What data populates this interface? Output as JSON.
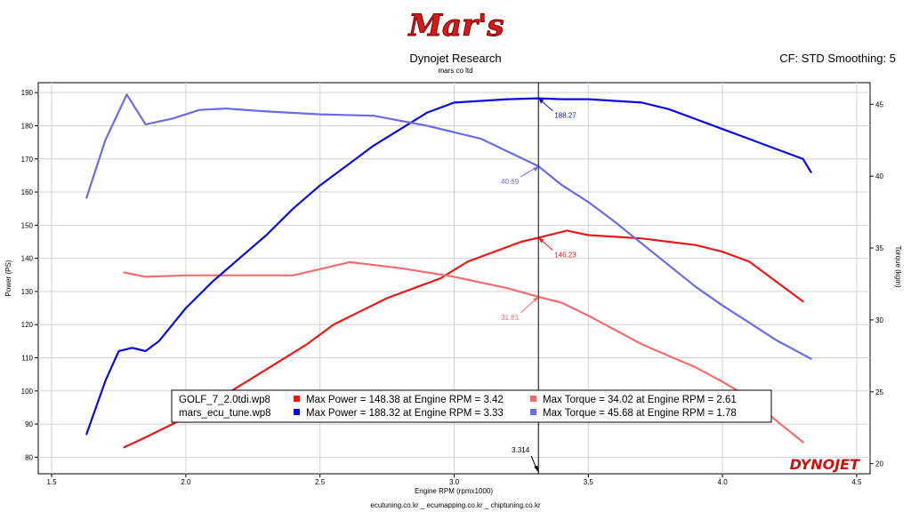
{
  "header": {
    "logo_text": "Mar's",
    "title": "Dynojet Research",
    "subtitle": "mars co ltd",
    "cf_info": "CF: STD Smoothing: 5"
  },
  "footer": {
    "text": "ecutuning.co.kr _ ecumapping.co.kr _ chiptuning.co.kr"
  },
  "brand": {
    "text": "DYNOJET"
  },
  "colors": {
    "golf_power": "#e81919",
    "golf_torque": "#f26e6e",
    "mars_power": "#0b0bd9",
    "mars_torque": "#6b6be8"
  },
  "chart_data": {
    "type": "line",
    "xlabel": "Engine RPM (rpmx1000)",
    "ylabel_left": "Power (PS)",
    "ylabel_right": "Torque (kgm)",
    "xlim": [
      1.45,
      4.55
    ],
    "ylim_left": [
      75,
      193
    ],
    "ylim_right": [
      19.3,
      46.5
    ],
    "x_ticks": [
      "1.5",
      "2.0",
      "2.5",
      "3.0",
      "3.5",
      "4.0",
      "4.5"
    ],
    "y_left_ticks": [
      "80",
      "90",
      "100",
      "110",
      "120",
      "130",
      "140",
      "150",
      "160",
      "170",
      "180",
      "190"
    ],
    "y_right_ticks": [
      "20",
      "25",
      "30",
      "35",
      "40",
      "45"
    ],
    "grid": true,
    "cursor": {
      "x": 3.314,
      "label": "3.314"
    },
    "series": [
      {
        "name": "GOLF_7_2.0tdi.wp8",
        "quantity": "Power",
        "axis": "left",
        "color": "#e81919",
        "x": [
          1.77,
          1.85,
          1.95,
          2.05,
          2.15,
          2.25,
          2.35,
          2.45,
          2.55,
          2.65,
          2.75,
          2.85,
          2.95,
          3.05,
          3.15,
          3.25,
          3.314,
          3.42,
          3.5,
          3.6,
          3.7,
          3.8,
          3.9,
          4.0,
          4.1,
          4.2,
          4.3
        ],
        "y": [
          83,
          86,
          90,
          94,
          99,
          104,
          109,
          114,
          120,
          124,
          128,
          131,
          134,
          139,
          142,
          145,
          146.23,
          148.38,
          147,
          146.5,
          146,
          145,
          144,
          142,
          139,
          133,
          127
        ]
      },
      {
        "name": "GOLF_7_2.0tdi.wp8",
        "quantity": "Torque",
        "axis": "right",
        "color": "#f26e6e",
        "x": [
          1.77,
          1.85,
          2.0,
          2.2,
          2.4,
          2.61,
          2.8,
          3.0,
          3.2,
          3.314,
          3.4,
          3.5,
          3.6,
          3.7,
          3.8,
          3.9,
          4.0,
          4.1,
          4.2,
          4.3
        ],
        "y": [
          33.3,
          33.0,
          33.1,
          33.1,
          33.1,
          34.02,
          33.6,
          33.0,
          32.2,
          31.61,
          31.2,
          30.3,
          29.3,
          28.3,
          27.5,
          26.7,
          25.7,
          24.6,
          23.0,
          21.5
        ]
      },
      {
        "name": "mars_ecu_tune.wp8",
        "quantity": "Power",
        "axis": "left",
        "color": "#0b0bd9",
        "x": [
          1.63,
          1.7,
          1.75,
          1.8,
          1.85,
          1.9,
          2.0,
          2.1,
          2.2,
          2.3,
          2.4,
          2.5,
          2.6,
          2.7,
          2.8,
          2.9,
          3.0,
          3.1,
          3.2,
          3.314,
          3.4,
          3.5,
          3.6,
          3.7,
          3.8,
          3.9,
          4.0,
          4.1,
          4.2,
          4.3,
          4.33
        ],
        "y": [
          87,
          103,
          112,
          113,
          112,
          115,
          125,
          133,
          140,
          147,
          155,
          162,
          168,
          174,
          179,
          184,
          187,
          187.5,
          188,
          188.27,
          188,
          188,
          187.5,
          187,
          185,
          182,
          179,
          176,
          173,
          170,
          166
        ]
      },
      {
        "name": "mars_ecu_tune.wp8",
        "quantity": "Torque",
        "axis": "right",
        "color": "#6b6be8",
        "x": [
          1.63,
          1.7,
          1.78,
          1.85,
          1.95,
          2.05,
          2.15,
          2.3,
          2.5,
          2.7,
          2.9,
          3.1,
          3.314,
          3.4,
          3.5,
          3.6,
          3.7,
          3.8,
          3.9,
          4.0,
          4.1,
          4.2,
          4.33
        ],
        "y": [
          38.5,
          42.5,
          45.68,
          43.6,
          44.0,
          44.6,
          44.7,
          44.5,
          44.3,
          44.2,
          43.5,
          42.6,
          40.69,
          39.4,
          38.2,
          36.8,
          35.3,
          33.8,
          32.3,
          31.0,
          29.8,
          28.6,
          27.3
        ]
      }
    ],
    "annotations": [
      {
        "text": "188.27",
        "color": "#0b0bd9"
      },
      {
        "text": "40.69",
        "color": "#6b6be8"
      },
      {
        "text": "146.23",
        "color": "#e81919"
      },
      {
        "text": "31.61",
        "color": "#f26e6e"
      }
    ],
    "legend": {
      "placement": "bottom-center",
      "rows": [
        {
          "file": "GOLF_7_2.0tdi.wp8",
          "power_text": "Max Power = 148.38 at Engine RPM = 3.42",
          "torque_text": "Max Torque = 34.02 at Engine RPM = 2.61",
          "power_color": "#e81919",
          "torque_color": "#f26e6e"
        },
        {
          "file": "mars_ecu_tune.wp8",
          "power_text": "Max Power = 188.32 at Engine RPM = 3.33",
          "torque_text": "Max Torque = 45.68 at Engine RPM = 1.78",
          "power_color": "#0b0bd9",
          "torque_color": "#6b6be8"
        }
      ]
    }
  }
}
